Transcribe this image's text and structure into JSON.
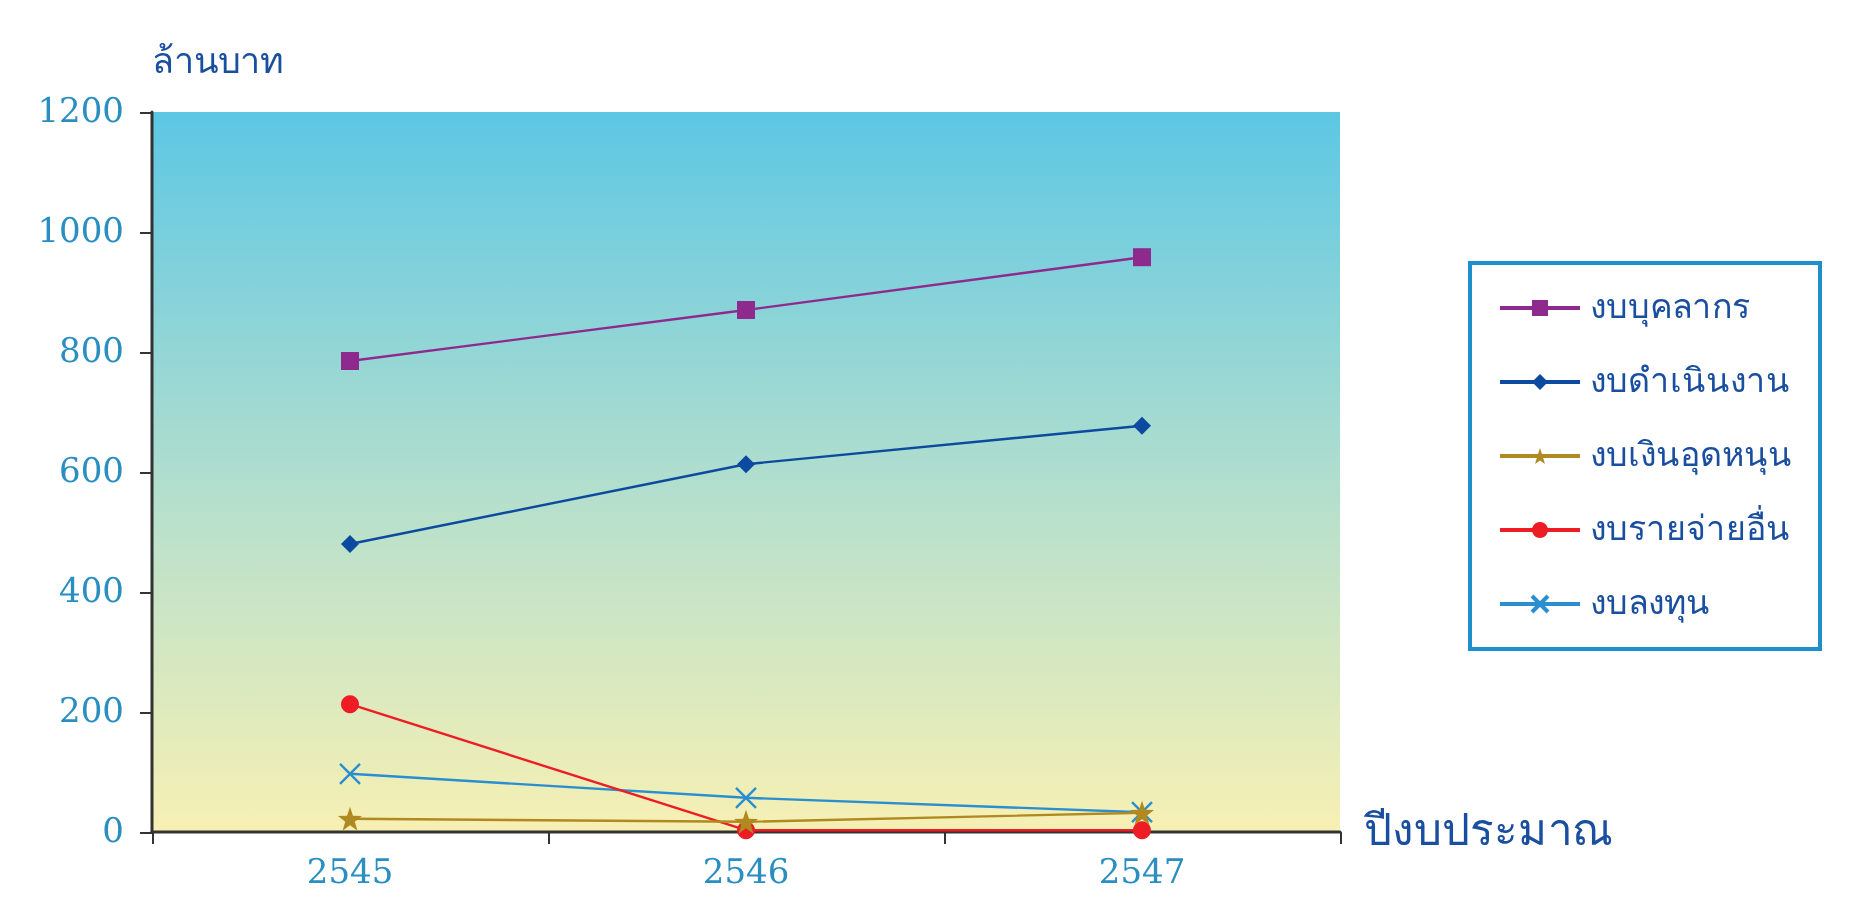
{
  "chart_data": {
    "type": "line",
    "xlabel": "ปีงบประมาณ",
    "ylabel": "ล้านบาท",
    "categories": [
      "2545",
      "2546",
      "2547"
    ],
    "ylim": [
      0,
      1200
    ],
    "yticks": [
      0,
      200,
      400,
      600,
      800,
      1000,
      1200
    ],
    "grid": false,
    "legend": "right",
    "series": [
      {
        "name": "งบบุคลากร",
        "color": "#8e2a8e",
        "marker": "square",
        "values": [
          785,
          870,
          958
        ]
      },
      {
        "name": "งบดำเนินงาน",
        "color": "#0b4a9e",
        "marker": "diamond",
        "values": [
          480,
          613,
          677
        ]
      },
      {
        "name": "งบเงินอุดหนุน",
        "color": "#b08a20",
        "marker": "star",
        "values": [
          22,
          17,
          32
        ]
      },
      {
        "name": "งบรายจ่ายอื่น",
        "color": "#ee1c24",
        "marker": "circle",
        "values": [
          213,
          3,
          3
        ]
      },
      {
        "name": "งบลงทุน",
        "color": "#2a8fd0",
        "marker": "cross",
        "values": [
          97,
          57,
          33
        ]
      }
    ]
  }
}
